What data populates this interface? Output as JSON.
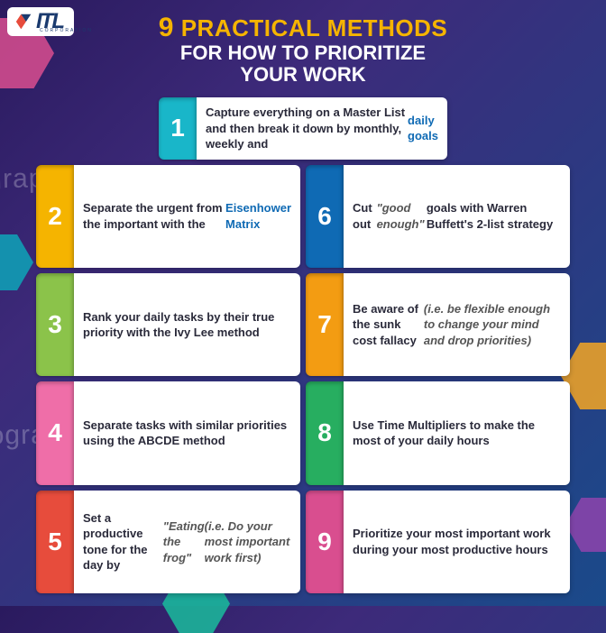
{
  "logo": {
    "text": "ITL",
    "sub": "CORPORATION"
  },
  "title": {
    "number": "9",
    "practical_methods": "Practical Methods",
    "line2": "for how to prioritize",
    "line3": "your work"
  },
  "watermark": "iography.aroadtome.co",
  "colors": {
    "c1": "#19b6c9",
    "c2": "#f5b400",
    "c3": "#8bc34a",
    "c4": "#ef6ea8",
    "c5": "#e74c3c",
    "c6": "#0f6ab4",
    "c7": "#f39c12",
    "c8": "#27ae60",
    "c9": "#d94e8f"
  },
  "items": [
    {
      "n": "1",
      "html": "Capture everything on a Master List and then break it down by monthly, weekly and <span class='em'>daily goals</span>"
    },
    {
      "n": "2",
      "html": "Separate the urgent from the important with the <span class='em'>Eisenhower Matrix</span>"
    },
    {
      "n": "6",
      "html": "Cut out <span class='it'>\"good enough\"</span> goals with Warren Buffett's 2-list strategy"
    },
    {
      "n": "3",
      "html": "Rank your daily tasks by their true priority with the Ivy Lee method"
    },
    {
      "n": "7",
      "html": "Be aware of the sunk cost fallacy <span class='it'>(i.e. be flexible enough to change your mind and drop priorities)</span>"
    },
    {
      "n": "4",
      "html": "Separate tasks with similar priorities using the ABCDE method"
    },
    {
      "n": "8",
      "html": "Use Time Multipliers to make the most of your daily hours"
    },
    {
      "n": "5",
      "html": "Set a productive tone for the day by <span class='it'>\"Eating the frog\"</span> <span class='it'>(i.e. Do your most important work first)</span>"
    },
    {
      "n": "9",
      "html": "Prioritize your most important work during your most productive hours"
    }
  ],
  "item_colors": [
    "c1",
    "c2",
    "c6",
    "c3",
    "c7",
    "c4",
    "c8",
    "c5",
    "c9"
  ]
}
